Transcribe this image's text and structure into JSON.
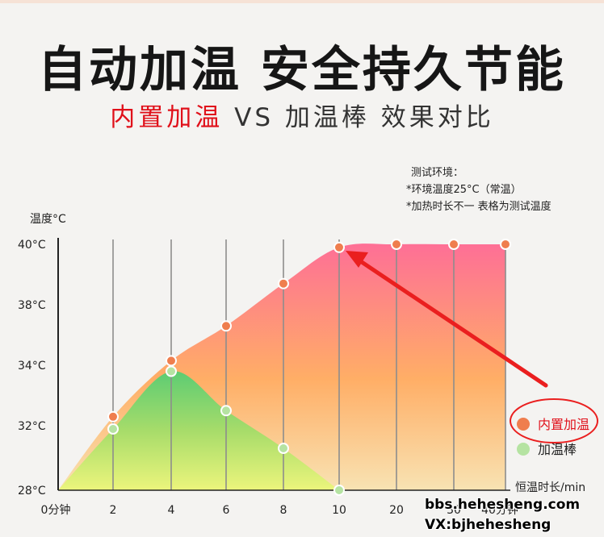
{
  "header": {
    "title": "自动加温 安全持久节能",
    "subtitle_highlight": "内置加温",
    "subtitle_rest": " VS 加温棒 效果对比"
  },
  "notes": {
    "heading": "测试环境：",
    "lines": [
      "*环境温度25°C（常温）",
      "*加热时长不一 表格为测试温度"
    ]
  },
  "watermark": {
    "line1": "bbs.hehesheng.com",
    "line2": "VX:bjhehesheng"
  },
  "colors": {
    "builtin_heater": "#ef7e4e",
    "heating_rod": "#b5e3a2",
    "highlight_text": "#e0101a",
    "arrow": "#ea1f1f"
  },
  "chart_data": {
    "type": "area",
    "ylabel": "温度°C",
    "xlabel": "恒温时长/min",
    "x_ticks": [
      "0分钟",
      "2",
      "4",
      "6",
      "8",
      "10",
      "20",
      "30",
      "40分钟"
    ],
    "y_ticks": [
      "28°C",
      "32°C",
      "34°C",
      "38°C",
      "40°C"
    ],
    "y_tick_values": [
      28,
      32,
      34,
      38,
      40
    ],
    "ylim": [
      28,
      40
    ],
    "grid": "vertical",
    "legend_position": "right",
    "series": [
      {
        "name": "内置加温",
        "x": [
          "0分钟",
          "2",
          "4",
          "6",
          "8",
          "10",
          "20",
          "30",
          "40分钟"
        ],
        "values": [
          28,
          32.3,
          34.3,
          36.6,
          38.7,
          39.9,
          40,
          40,
          40
        ]
      },
      {
        "name": "加温棒",
        "x": [
          "0分钟",
          "2",
          "4",
          "6",
          "8",
          "10"
        ],
        "values": [
          28,
          31.8,
          33.8,
          32.5,
          30.6,
          28
        ]
      }
    ]
  }
}
